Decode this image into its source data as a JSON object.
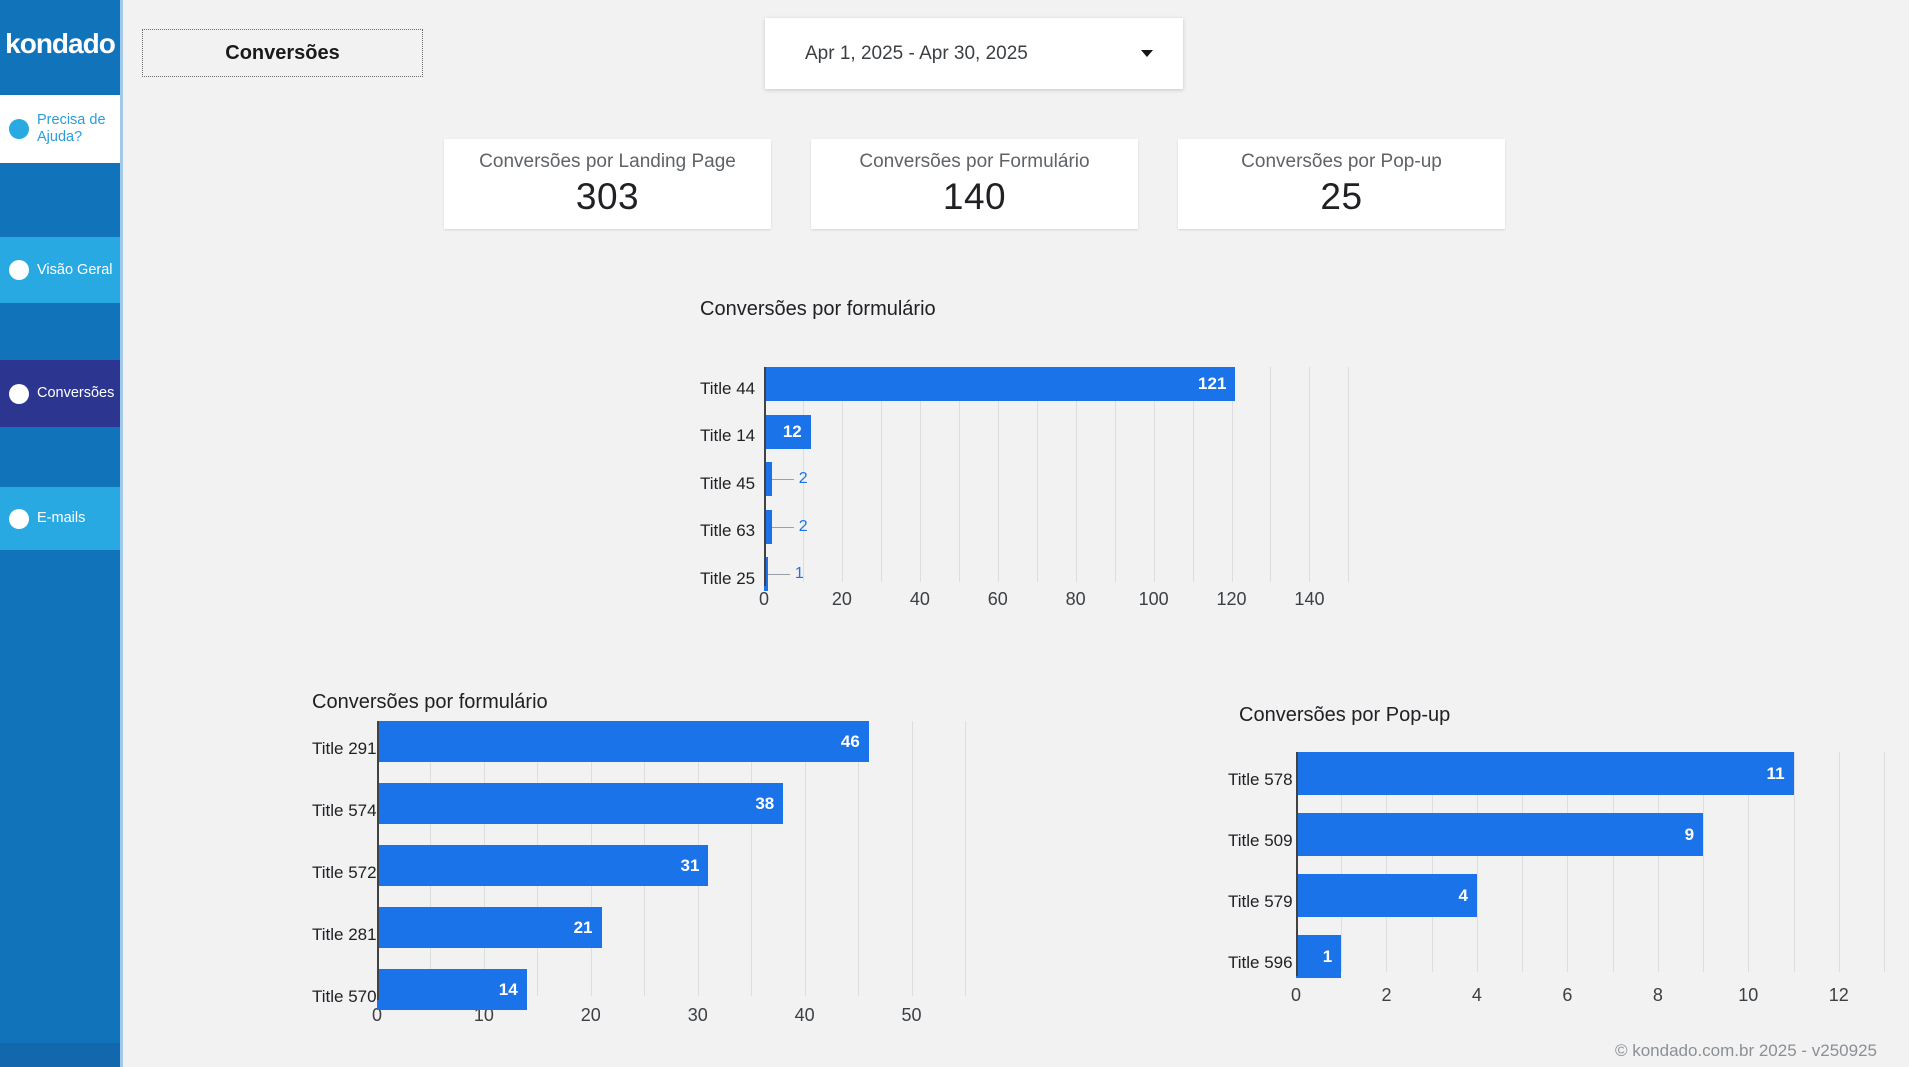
{
  "page": {
    "footer": "© kondado.com.br 2025 - v250925"
  },
  "sidebar": {
    "logo": "kondado",
    "items": [
      {
        "id": "precisa-de-ajuda",
        "label": "Precisa de Ajuda?"
      },
      {
        "id": "visao-geral",
        "label": "Visão Geral"
      },
      {
        "id": "conversoes",
        "label": "Conversões"
      },
      {
        "id": "e-mails",
        "label": "E-mails"
      }
    ],
    "colors": {
      "base": "#1173ba",
      "light": "#29a9e1",
      "active": "#2c3690"
    }
  },
  "header": {
    "page_button": "Conversões",
    "date_range": "Apr 1, 2025 - Apr 30, 2025"
  },
  "kpis": [
    {
      "title": "Conversões por Landing Page",
      "value": "303"
    },
    {
      "title": "Conversões por Formulário",
      "value": "140"
    },
    {
      "title": "Conversões por Pop-up",
      "value": "25"
    }
  ],
  "chart_data": [
    {
      "type": "bar",
      "orientation": "horizontal",
      "grid": true,
      "legend": "none",
      "title": "Conversões por formulário",
      "categories": [
        "Title 44",
        "Title 14",
        "Title 45",
        "Title 63",
        "Title 25"
      ],
      "values": [
        121,
        12,
        2,
        2,
        1
      ],
      "xlim": [
        0,
        154
      ],
      "xticks": [
        0,
        20,
        40,
        60,
        80,
        100,
        120,
        140
      ],
      "grid_step": 10,
      "bar_color": "#1a73e8"
    },
    {
      "type": "bar",
      "orientation": "horizontal",
      "grid": true,
      "legend": "none",
      "title": "Conversões por formulário",
      "categories": [
        "Title 291",
        "Title 574",
        "Title 572",
        "Title 281",
        "Title 570"
      ],
      "values": [
        46,
        38,
        31,
        21,
        14
      ],
      "xlim": [
        0,
        55
      ],
      "xticks": [
        0,
        10,
        20,
        30,
        40,
        50
      ],
      "grid_step": 5,
      "bar_color": "#1a73e8"
    },
    {
      "type": "bar",
      "orientation": "horizontal",
      "grid": true,
      "legend": "none",
      "title": "Conversões por Pop-up",
      "categories": [
        "Title 578",
        "Title 509",
        "Title 579",
        "Title 596"
      ],
      "values": [
        11,
        9,
        4,
        1
      ],
      "xlim": [
        0,
        13
      ],
      "xticks": [
        0,
        2,
        4,
        6,
        8,
        10,
        12
      ],
      "grid_step": 1,
      "bar_color": "#1a73e8"
    }
  ]
}
